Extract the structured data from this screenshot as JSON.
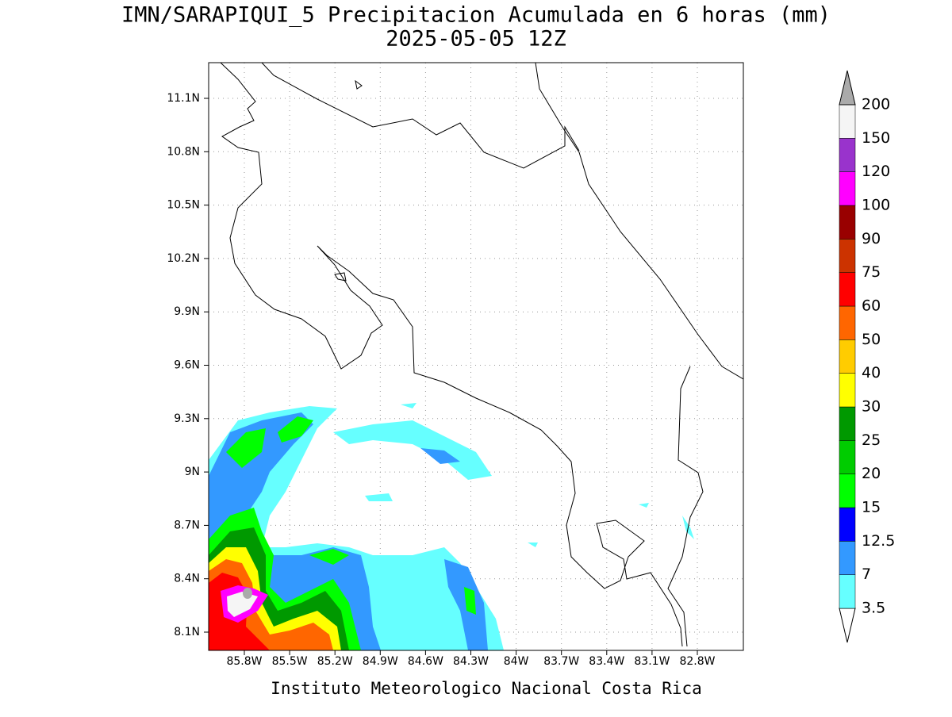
{
  "title": [
    "IMN/SARAPIQUI_5 Precipitacion Acumulada en 6 horas (mm)",
    "2025-05-05 12Z"
  ],
  "lat_labels": [
    "11.1N",
    "10.8N",
    "10.5N",
    "10.2N",
    "9.9N",
    "9.6N",
    "9.3N",
    "9N",
    "8.7N",
    "8.4N",
    "8.1N"
  ],
  "lon_labels": [
    "85.8W",
    "85.5W",
    "85.2W",
    "84.9W",
    "84.6W",
    "84.3W",
    "84W",
    "83.7W",
    "83.4W",
    "83.1W",
    "82.8W"
  ],
  "colorbar": {
    "labels": [
      "3.5",
      "7",
      "12.5",
      "15",
      "20",
      "25",
      "30",
      "40",
      "50",
      "60",
      "75",
      "90",
      "100",
      "120",
      "150",
      "200"
    ],
    "colors": [
      "#66ffff",
      "#3399ff",
      "#0000ff",
      "#00ff00",
      "#00cc00",
      "#009900",
      "#ffff00",
      "#ffcc00",
      "#ff6600",
      "#ff0000",
      "#cc3300",
      "#990000",
      "#ff00ff",
      "#9933cc",
      "#f5f5f5"
    ],
    "over_color": "#aaaaaa",
    "under_color": "#ffffff"
  },
  "footer": "Instituto Meteorologico Nacional Costa Rica"
}
